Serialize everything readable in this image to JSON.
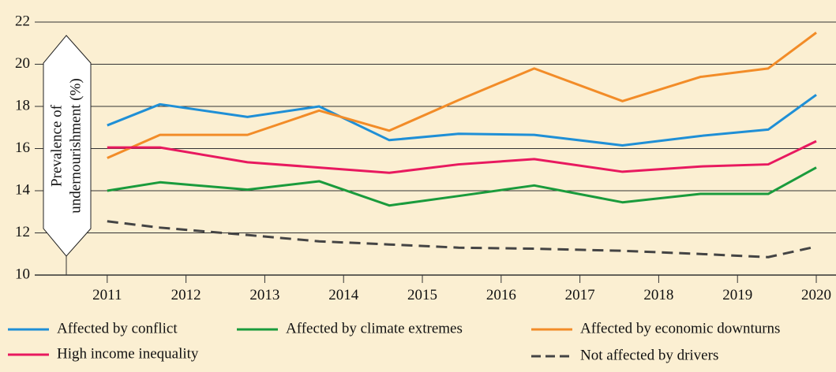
{
  "chart_data": {
    "type": "line",
    "ylabel": [
      "Prevalence of",
      "undernourishment (%)"
    ],
    "x": [
      2011,
      2011.67,
      2012.78,
      2013.69,
      2014.58,
      2015.46,
      2016.42,
      2017.54,
      2018.53,
      2019.39,
      2020
    ],
    "xlim": [
      2010.08,
      2020.1
    ],
    "xticks": [
      2011,
      2012,
      2013,
      2014,
      2015,
      2016,
      2017,
      2018,
      2019,
      2020
    ],
    "ylim": [
      10,
      22
    ],
    "yticks": [
      10,
      12,
      14,
      16,
      18,
      20,
      22
    ],
    "grid": true,
    "legend": "bottom",
    "series": [
      {
        "name": "Affected by conflict",
        "color": "#1f8fd6",
        "values": [
          17.1,
          18.1,
          17.5,
          18.0,
          16.4,
          16.7,
          16.65,
          16.15,
          16.6,
          16.9,
          18.55
        ]
      },
      {
        "name": "Affected by climate extremes",
        "color": "#1a9b3c",
        "values": [
          14.0,
          14.4,
          14.05,
          14.45,
          13.3,
          13.75,
          14.25,
          13.45,
          13.85,
          13.85,
          15.1
        ]
      },
      {
        "name": "Affected by economic downturns",
        "color": "#f28c28",
        "values": [
          15.55,
          16.65,
          16.65,
          17.8,
          16.85,
          18.3,
          19.8,
          18.25,
          19.4,
          19.8,
          21.5
        ]
      },
      {
        "name": "High income inequality",
        "color": "#e8195f",
        "values": [
          16.05,
          16.05,
          15.35,
          15.1,
          14.85,
          15.25,
          15.5,
          14.9,
          15.15,
          15.25,
          16.35
        ]
      },
      {
        "name": "Not affected by drivers",
        "color": "#444444",
        "dashed": true,
        "values": [
          12.55,
          12.25,
          11.9,
          11.6,
          11.45,
          11.3,
          11.25,
          11.15,
          11.0,
          10.85,
          11.35
        ]
      }
    ]
  }
}
